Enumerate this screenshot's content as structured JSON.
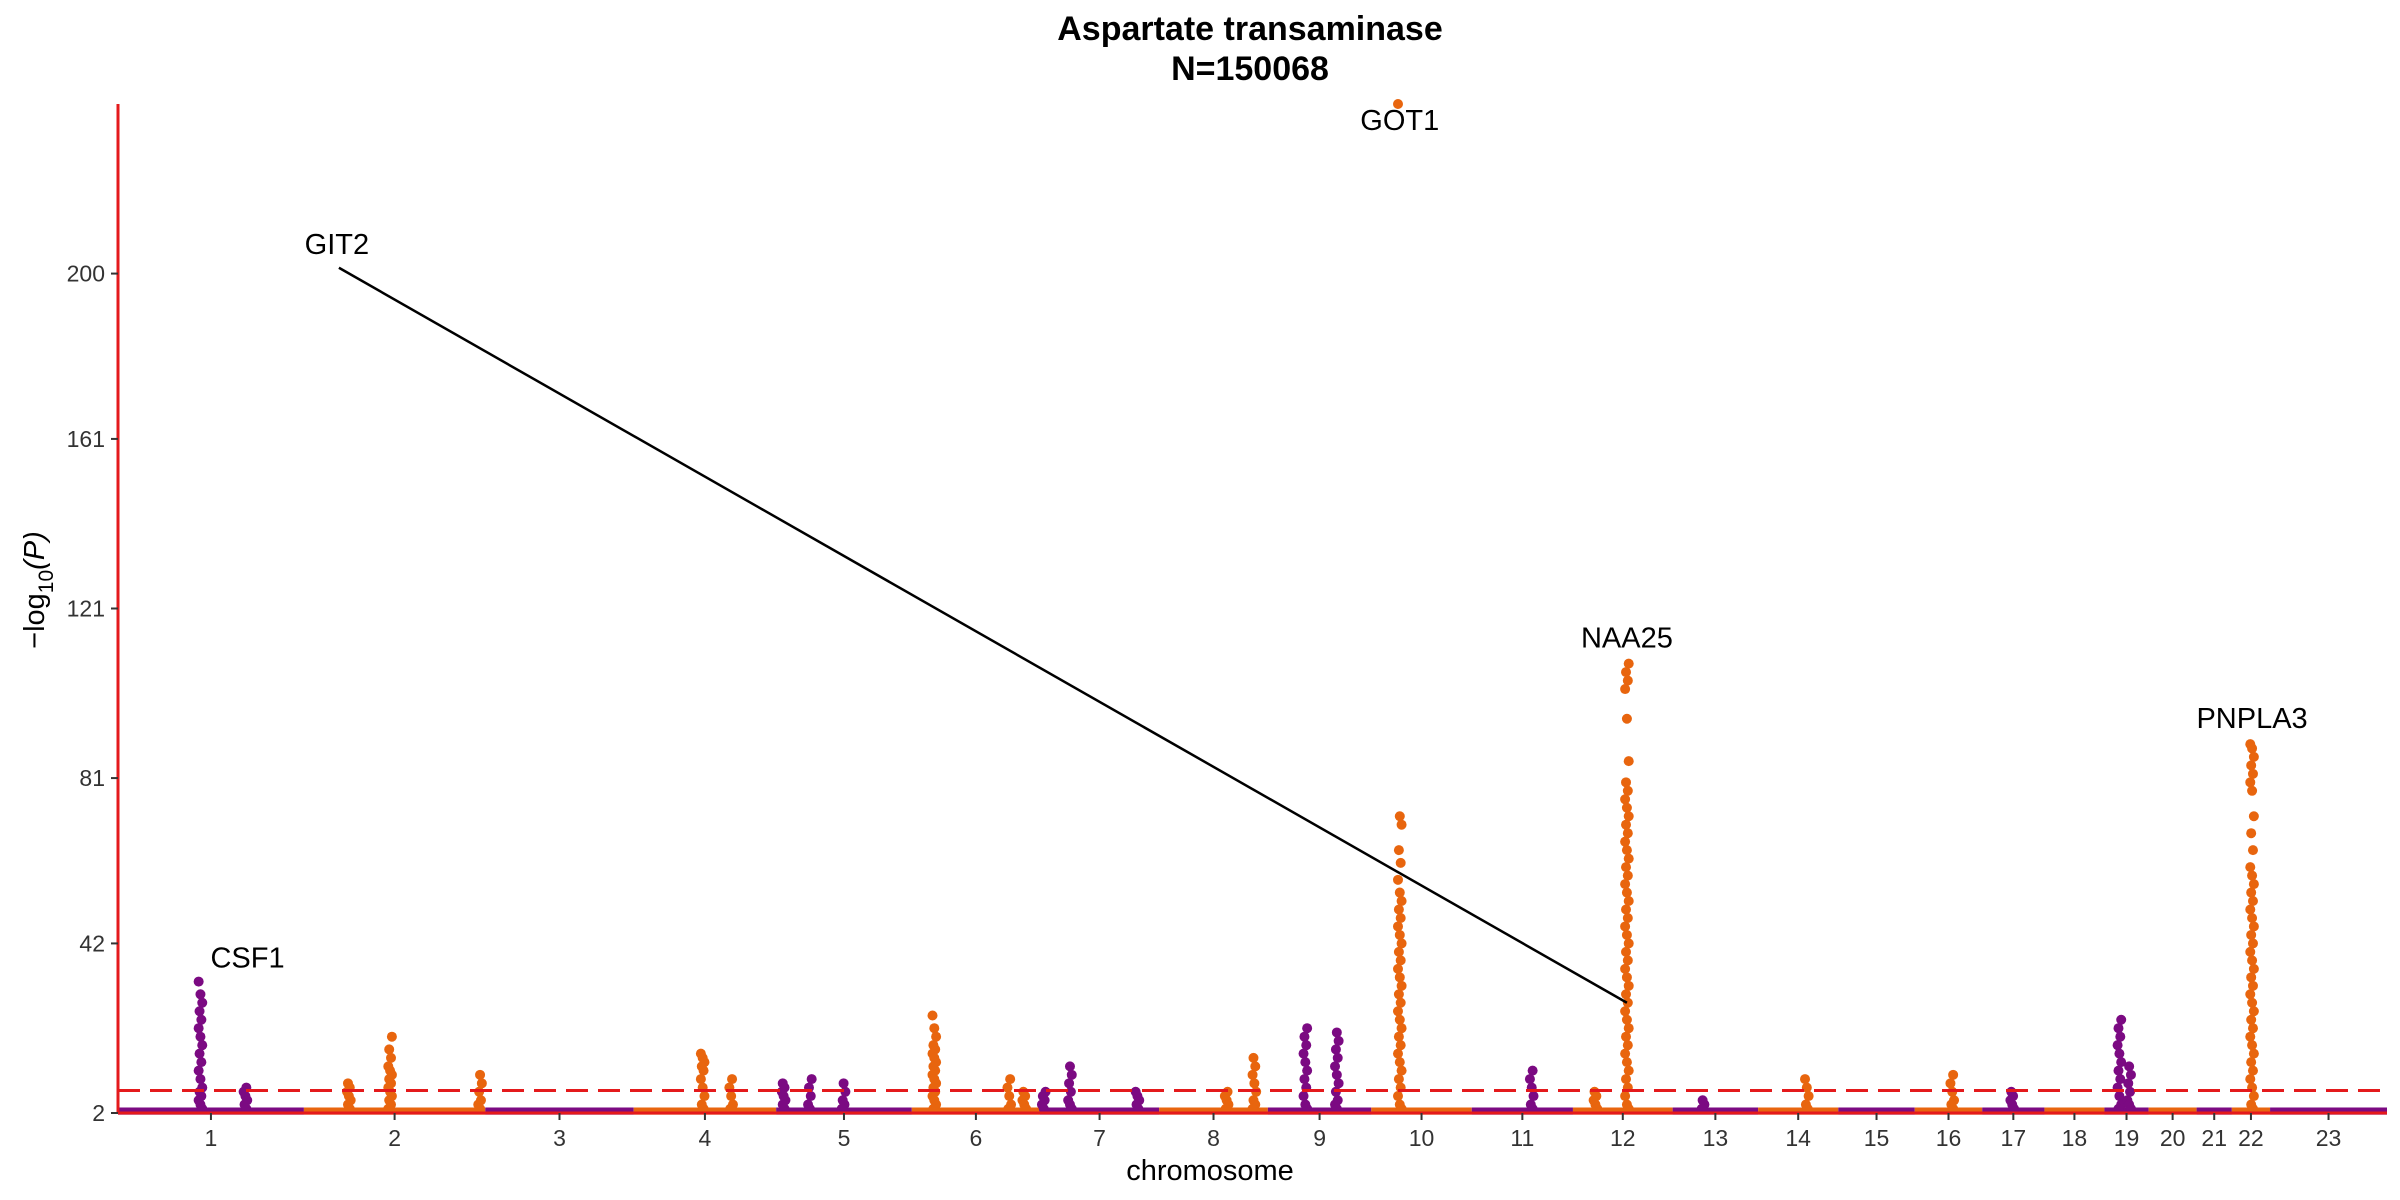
{
  "chart_data": {
    "type": "scatter",
    "subtype": "manhattan",
    "title": "Aspartate transaminase",
    "subtitle": "N=150068",
    "xlabel": "chromosome",
    "ylabel_main": "−log",
    "ylabel_sub": "10",
    "ylabel_tail": "(P)",
    "ylim": [
      2,
      240
    ],
    "yticks": [
      2,
      42,
      81,
      121,
      161,
      200
    ],
    "significance_threshold": 7.3,
    "colors": {
      "odd": "#7B0A82",
      "even": "#E8650E",
      "axis": "#E41A1C",
      "threshold": "#E41A1C",
      "connector": "#000000"
    },
    "chromosomes": [
      "1",
      "2",
      "3",
      "4",
      "5",
      "6",
      "7",
      "8",
      "9",
      "10",
      "11",
      "12",
      "13",
      "14",
      "15",
      "16",
      "17",
      "18",
      "19",
      "20",
      "21",
      "22",
      "23"
    ],
    "chromosome_starts": [
      0,
      248,
      490,
      688,
      878,
      1059,
      1230,
      1389,
      1534,
      1672,
      1806,
      1941,
      2074,
      2188,
      2295,
      2397,
      2487,
      2570,
      2650,
      2709,
      2773,
      2820,
      2871,
      3027
    ],
    "peaks": [
      {
        "chr": "1",
        "pos": 110,
        "values": [
          33,
          30,
          28,
          26,
          24,
          22,
          20,
          18,
          16,
          14,
          12,
          10,
          8,
          7,
          6,
          5,
          4,
          3
        ]
      },
      {
        "chr": "1",
        "pos": 170,
        "values": [
          8,
          7,
          6,
          5,
          4,
          3
        ]
      },
      {
        "chr": "2",
        "pos": 60,
        "values": [
          9,
          8,
          7,
          6,
          5,
          4,
          3
        ]
      },
      {
        "chr": "2",
        "pos": 115,
        "values": [
          20,
          17,
          15,
          13,
          12,
          11,
          10,
          9,
          8,
          7,
          6,
          5,
          4,
          3
        ]
      },
      {
        "chr": "2",
        "pos": 235,
        "values": [
          11,
          9,
          7,
          5,
          4,
          3
        ]
      },
      {
        "chr": "4",
        "pos": 92,
        "values": [
          16,
          15,
          14,
          13,
          12,
          10,
          8,
          6,
          4,
          3
        ]
      },
      {
        "chr": "4",
        "pos": 130,
        "values": [
          10,
          8,
          6,
          4,
          3
        ]
      },
      {
        "chr": "5",
        "pos": 10,
        "values": [
          9,
          8,
          7,
          6,
          5,
          4,
          3
        ]
      },
      {
        "chr": "5",
        "pos": 45,
        "values": [
          10,
          8,
          6,
          4,
          3
        ]
      },
      {
        "chr": "5",
        "pos": 90,
        "values": [
          9,
          7,
          5,
          4,
          3
        ]
      },
      {
        "chr": "6",
        "pos": 30,
        "values": [
          25,
          22,
          20,
          18,
          17,
          16,
          15,
          14,
          13,
          12,
          11,
          10,
          9,
          8,
          7,
          6,
          5,
          4,
          3
        ]
      },
      {
        "chr": "6",
        "pos": 130,
        "values": [
          10,
          8,
          6,
          4,
          3
        ]
      },
      {
        "chr": "6",
        "pos": 150,
        "values": [
          7,
          6,
          5,
          4,
          3
        ]
      },
      {
        "chr": "7",
        "pos": 5,
        "values": [
          7,
          6,
          5,
          4,
          3
        ]
      },
      {
        "chr": "7",
        "pos": 40,
        "values": [
          13,
          11,
          9,
          7,
          5,
          4,
          3
        ]
      },
      {
        "chr": "7",
        "pos": 130,
        "values": [
          7,
          6,
          5,
          4,
          3
        ]
      },
      {
        "chr": "8",
        "pos": 90,
        "values": [
          7,
          6,
          5,
          4,
          3
        ]
      },
      {
        "chr": "8",
        "pos": 127,
        "values": [
          15,
          13,
          11,
          9,
          7,
          5,
          4,
          3
        ]
      },
      {
        "chr": "9",
        "pos": 50,
        "values": [
          22,
          20,
          18,
          16,
          14,
          12,
          10,
          8,
          6,
          4,
          3
        ]
      },
      {
        "chr": "9",
        "pos": 92,
        "values": [
          21,
          19,
          17,
          15,
          13,
          11,
          9,
          7,
          5,
          4,
          3
        ]
      },
      {
        "chr": "10",
        "pos": 38,
        "values": [
          240,
          72,
          70,
          64,
          61,
          57,
          54,
          52,
          50,
          48,
          46,
          44,
          42,
          40,
          38,
          36,
          34,
          32,
          30,
          28,
          26,
          24,
          22,
          20,
          18,
          16,
          14,
          12,
          10,
          8,
          6,
          4,
          3
        ]
      },
      {
        "chr": "11",
        "pos": 80,
        "values": [
          12,
          10,
          8,
          6,
          4,
          3
        ]
      },
      {
        "chr": "12",
        "pos": 30,
        "values": [
          7,
          6,
          5,
          4,
          3
        ]
      },
      {
        "chr": "12",
        "pos": 72,
        "values": [
          108,
          106,
          104,
          102,
          95,
          85,
          80,
          78,
          76,
          74,
          72,
          70,
          68,
          66,
          64,
          62,
          60,
          58,
          56,
          54,
          52,
          50,
          48,
          46,
          44,
          42,
          40,
          38,
          36,
          34,
          32,
          30,
          28,
          26,
          24,
          22,
          20,
          18,
          16,
          14,
          12,
          10,
          8,
          6,
          4,
          3
        ]
      },
      {
        "chr": "13",
        "pos": 40,
        "values": [
          5,
          4,
          3
        ]
      },
      {
        "chr": "14",
        "pos": 65,
        "values": [
          10,
          8,
          6,
          4,
          3
        ]
      },
      {
        "chr": "16",
        "pos": 50,
        "values": [
          11,
          9,
          7,
          5,
          4,
          3
        ]
      },
      {
        "chr": "17",
        "pos": 40,
        "values": [
          7,
          6,
          5,
          4,
          3
        ]
      },
      {
        "chr": "19",
        "pos": 20,
        "values": [
          24,
          22,
          20,
          18,
          16,
          14,
          12,
          10,
          8,
          6,
          4,
          3
        ]
      },
      {
        "chr": "19",
        "pos": 33,
        "values": [
          13,
          11,
          9,
          7,
          5,
          4,
          3
        ]
      },
      {
        "chr": "22",
        "pos": 27,
        "values": [
          89,
          88,
          86,
          84,
          82,
          80,
          78,
          72,
          68,
          64,
          60,
          58,
          56,
          54,
          52,
          50,
          48,
          46,
          44,
          42,
          40,
          38,
          36,
          34,
          32,
          30,
          28,
          26,
          24,
          22,
          20,
          18,
          16,
          14,
          12,
          10,
          8,
          6,
          4,
          3
        ]
      }
    ],
    "annotations": [
      {
        "label": "CSF1",
        "chr": "1",
        "pos": 110,
        "value": 33
      },
      {
        "label": "GIT2",
        "chr": "12",
        "pos": 72,
        "value": 28
      },
      {
        "label": "GOT1",
        "chr": "10",
        "pos": 38,
        "value": 240
      },
      {
        "label": "NAA25",
        "chr": "12",
        "pos": 72,
        "value": 108
      },
      {
        "label": "PNPLA3",
        "chr": "22",
        "pos": 27,
        "value": 89
      }
    ]
  }
}
